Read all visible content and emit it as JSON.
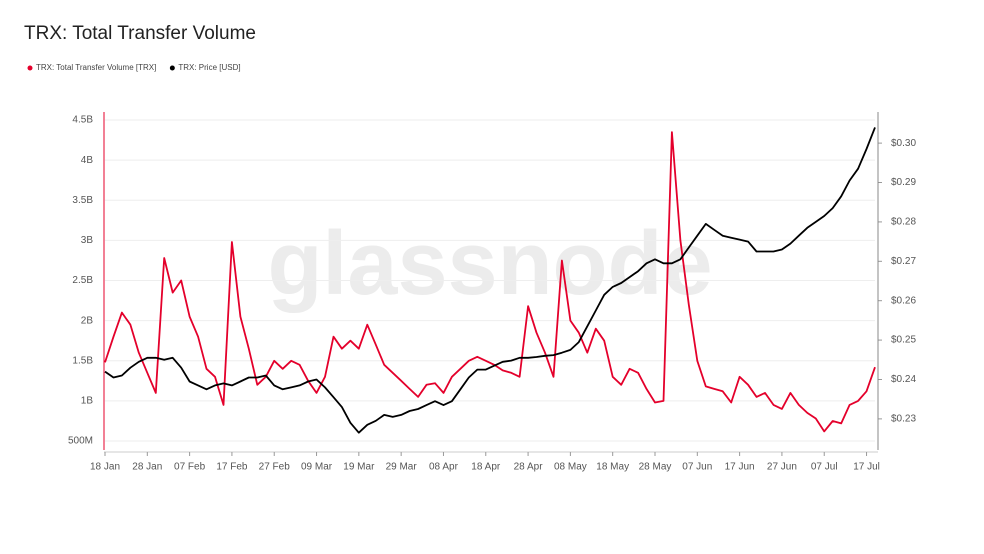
{
  "chart_data": {
    "type": "line",
    "title": "TRX: Total Transfer Volume",
    "watermark": "glassnode",
    "categories": [
      "18 Jan",
      null,
      null,
      null,
      null,
      "28 Jan",
      null,
      null,
      null,
      null,
      "07 Feb",
      null,
      null,
      null,
      null,
      "17 Feb",
      null,
      null,
      null,
      null,
      "27 Feb",
      null,
      null,
      null,
      null,
      "09 Mar",
      null,
      null,
      null,
      null,
      "19 Mar",
      null,
      null,
      null,
      null,
      "29 Mar",
      null,
      null,
      null,
      null,
      "08 Apr",
      null,
      null,
      null,
      null,
      "18 Apr",
      null,
      null,
      null,
      null,
      "28 Apr",
      null,
      null,
      null,
      null,
      "08 May",
      null,
      null,
      null,
      null,
      "18 May",
      null,
      null,
      null,
      null,
      "28 May",
      null,
      null,
      null,
      null,
      "07 Jun",
      null,
      null,
      null,
      null,
      "17 Jun",
      null,
      null,
      null,
      null,
      "27 Jun",
      null,
      null,
      null,
      null,
      "07 Jul",
      null,
      null,
      null,
      null,
      "17 Jul",
      null
    ],
    "series": [
      {
        "name": "TRX: Total Transfer Volume [TRX]",
        "color": "#e4002b",
        "axis": "y",
        "values": [
          1480000000,
          1800000000,
          2100000000,
          1950000000,
          1600000000,
          1350000000,
          1100000000,
          2780000000,
          2350000000,
          2500000000,
          2050000000,
          1800000000,
          1400000000,
          1300000000,
          950000000,
          2980000000,
          2050000000,
          1650000000,
          1200000000,
          1300000000,
          1500000000,
          1400000000,
          1500000000,
          1450000000,
          1250000000,
          1100000000,
          1300000000,
          1800000000,
          1650000000,
          1750000000,
          1650000000,
          1950000000,
          1700000000,
          1450000000,
          1350000000,
          1250000000,
          1150000000,
          1050000000,
          1200000000,
          1220000000,
          1100000000,
          1300000000,
          1400000000,
          1500000000,
          1550000000,
          1500000000,
          1450000000,
          1380000000,
          1350000000,
          1300000000,
          2180000000,
          1850000000,
          1600000000,
          1300000000,
          2750000000,
          2000000000,
          1850000000,
          1600000000,
          1900000000,
          1750000000,
          1300000000,
          1200000000,
          1400000000,
          1350000000,
          1150000000,
          980000000,
          1000000000,
          4350000000,
          3000000000,
          2200000000,
          1500000000,
          1180000000,
          1150000000,
          1120000000,
          980000000,
          1300000000,
          1200000000,
          1050000000,
          1100000000,
          950000000,
          900000000,
          1100000000,
          950000000,
          850000000,
          780000000,
          620000000,
          750000000,
          720000000,
          950000000,
          1000000000,
          1120000000,
          1420000000
        ]
      },
      {
        "name": "TRX: Price [USD]",
        "color": "#000000",
        "axis": "y2",
        "values": [
          0.242,
          0.2405,
          0.241,
          0.243,
          0.2445,
          0.2455,
          0.2455,
          0.245,
          0.2455,
          0.243,
          0.2395,
          0.2385,
          0.2375,
          0.2385,
          0.239,
          0.2385,
          0.2395,
          0.2405,
          0.2405,
          0.241,
          0.2385,
          0.2375,
          0.238,
          0.2385,
          0.2395,
          0.24,
          0.238,
          0.2355,
          0.233,
          0.229,
          0.2265,
          0.2285,
          0.2295,
          0.231,
          0.2305,
          0.231,
          0.232,
          0.2325,
          0.2335,
          0.2345,
          0.2335,
          0.2345,
          0.2375,
          0.2405,
          0.2425,
          0.2425,
          0.2435,
          0.2445,
          0.2448,
          0.2455,
          0.2455,
          0.2457,
          0.246,
          0.2462,
          0.2468,
          0.2475,
          0.2495,
          0.2535,
          0.2575,
          0.2615,
          0.2635,
          0.2645,
          0.266,
          0.2675,
          0.2695,
          0.2705,
          0.2695,
          0.2695,
          0.2705,
          0.2735,
          0.2765,
          0.2795,
          0.278,
          0.2765,
          0.276,
          0.2755,
          0.275,
          0.2725,
          0.2725,
          0.2725,
          0.273,
          0.2745,
          0.2765,
          0.2785,
          0.28,
          0.2815,
          0.2835,
          0.2865,
          0.2905,
          0.2935,
          0.2985,
          0.304
        ]
      }
    ],
    "ylim": [
      388000000,
      4600000000
    ],
    "yticks": [
      {
        "value": 500000000,
        "label": "500M"
      },
      {
        "value": 1000000000,
        "label": "1B"
      },
      {
        "value": 1500000000,
        "label": "1.5B"
      },
      {
        "value": 2000000000,
        "label": "2B"
      },
      {
        "value": 2500000000,
        "label": "2.5B"
      },
      {
        "value": 3000000000,
        "label": "3B"
      },
      {
        "value": 3500000000,
        "label": "3.5B"
      },
      {
        "value": 4000000000,
        "label": "4B"
      },
      {
        "value": 4500000000,
        "label": "4.5B"
      }
    ],
    "y2lim": [
      0.2221,
      0.3079
    ],
    "y2ticks": [
      {
        "value": 0.23,
        "label": "$0.23"
      },
      {
        "value": 0.24,
        "label": "$0.24"
      },
      {
        "value": 0.25,
        "label": "$0.25"
      },
      {
        "value": 0.26,
        "label": "$0.26"
      },
      {
        "value": 0.27,
        "label": "$0.27"
      },
      {
        "value": 0.28,
        "label": "$0.28"
      },
      {
        "value": 0.29,
        "label": "$0.29"
      },
      {
        "value": 0.3,
        "label": "$0.30"
      }
    ],
    "grid": true
  }
}
